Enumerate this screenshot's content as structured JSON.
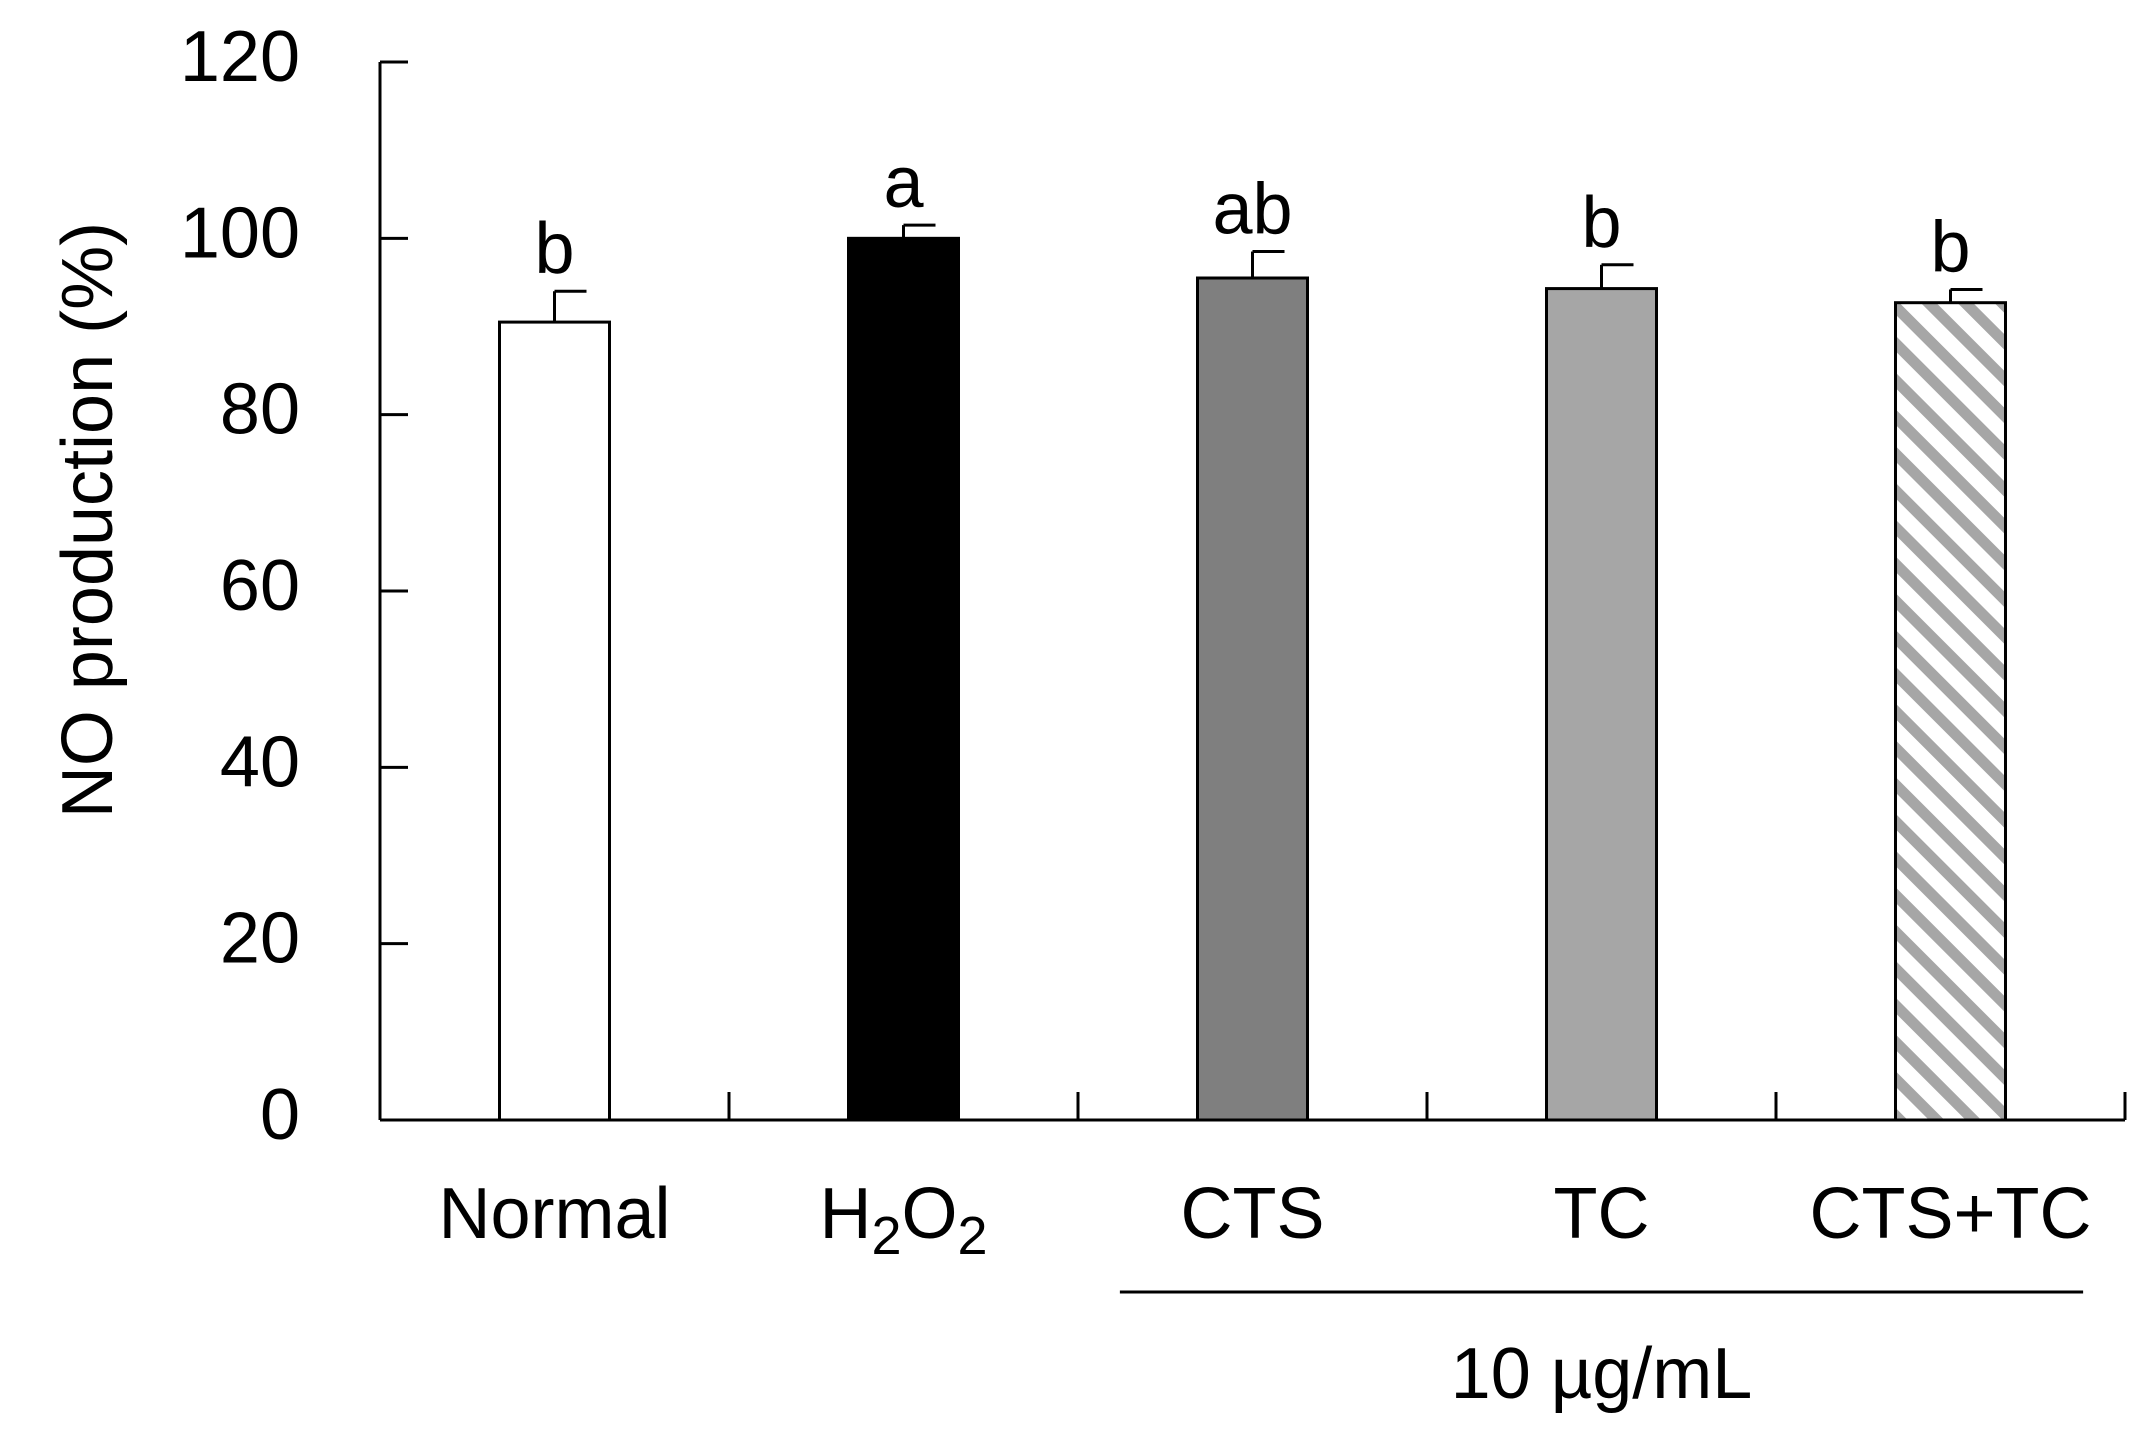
{
  "chart_data": {
    "type": "bar",
    "title": "",
    "xlabel": "",
    "ylabel": "NO production (%)",
    "ylim": [
      0,
      120
    ],
    "yticks": [
      0,
      20,
      40,
      60,
      80,
      100,
      120
    ],
    "categories": [
      {
        "main": "Normal",
        "sub": "",
        "tail": ""
      },
      {
        "main": "H",
        "sub": "2",
        "tail": "O",
        "sub2": "2"
      },
      {
        "main": "CTS",
        "sub": "",
        "tail": ""
      },
      {
        "main": "TC",
        "sub": "",
        "tail": ""
      },
      {
        "main": "CTS+TC",
        "sub": "",
        "tail": ""
      }
    ],
    "values": [
      90.5,
      100.0,
      95.5,
      94.3,
      92.7
    ],
    "errors": [
      3.5,
      1.5,
      3.0,
      2.7,
      1.5
    ],
    "significance": [
      "b",
      "a",
      "ab",
      "b",
      "b"
    ],
    "bar_styles": [
      {
        "fill": "#ffffff",
        "pattern": "none"
      },
      {
        "fill": "#000000",
        "pattern": "none"
      },
      {
        "fill": "#7f7f7f",
        "pattern": "none"
      },
      {
        "fill": "#a6a6a6",
        "pattern": "none"
      },
      {
        "fill": "#ffffff",
        "pattern": "diagonal-stripes",
        "stripe_color": "#a6a6a6"
      }
    ],
    "group_annotation": {
      "label": "10 µg/mL",
      "start_category": 2,
      "end_category": 4
    },
    "grid": false
  }
}
